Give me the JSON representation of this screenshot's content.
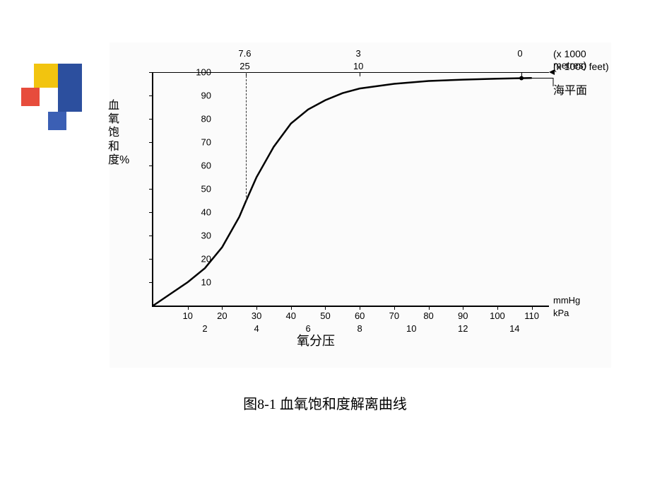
{
  "logo_colors": {
    "yellow": "#f2c40f",
    "blue": "#2c4f9e",
    "red": "#e74c3c",
    "blue2": "#3b5fb4"
  },
  "chart": {
    "type": "line",
    "curve": [
      [
        0,
        0
      ],
      [
        5,
        5
      ],
      [
        10,
        10
      ],
      [
        15,
        16
      ],
      [
        20,
        25
      ],
      [
        25,
        38
      ],
      [
        27,
        45
      ],
      [
        30,
        55
      ],
      [
        35,
        68
      ],
      [
        40,
        78
      ],
      [
        45,
        84
      ],
      [
        50,
        88
      ],
      [
        55,
        91
      ],
      [
        60,
        93
      ],
      [
        70,
        95
      ],
      [
        80,
        96.2
      ],
      [
        90,
        96.8
      ],
      [
        100,
        97.2
      ],
      [
        110,
        97.5
      ]
    ],
    "curve_color": "#000000",
    "curve_width": 2.5,
    "ylim": [
      0,
      100
    ],
    "yticks": [
      10,
      20,
      30,
      40,
      50,
      60,
      70,
      80,
      90,
      100
    ],
    "ylabel_vertical_text": "血氧饱和度%",
    "primary_x": {
      "unit_label": "mmHg",
      "lim": [
        0,
        115
      ],
      "ticks": [
        10,
        20,
        30,
        40,
        50,
        60,
        70,
        80,
        90,
        100,
        110
      ]
    },
    "secondary_x": {
      "unit_label": "kPa",
      "ticks": [
        2,
        4,
        6,
        8,
        10,
        12,
        14
      ],
      "map_mm": [
        15,
        30,
        45,
        60,
        75,
        90,
        105
      ]
    },
    "xlabel": "氧分压",
    "top_markers": {
      "metres_label": "(x 1000 metres)",
      "feet_label": "(x 1000 feet)",
      "points_mm": [
        27,
        60,
        107
      ],
      "metres": [
        "7.6",
        "3",
        "0"
      ],
      "feet": [
        "25",
        "10",
        ""
      ],
      "dashed_vertical_at_mm": 27,
      "sea_level_label": "海平面"
    },
    "background_color": "#fbfbfb",
    "axis_color": "#000000",
    "tick_fontsize": 13,
    "label_fontsize": 16
  },
  "caption": "图8-1 血氧饱和度解离曲线"
}
